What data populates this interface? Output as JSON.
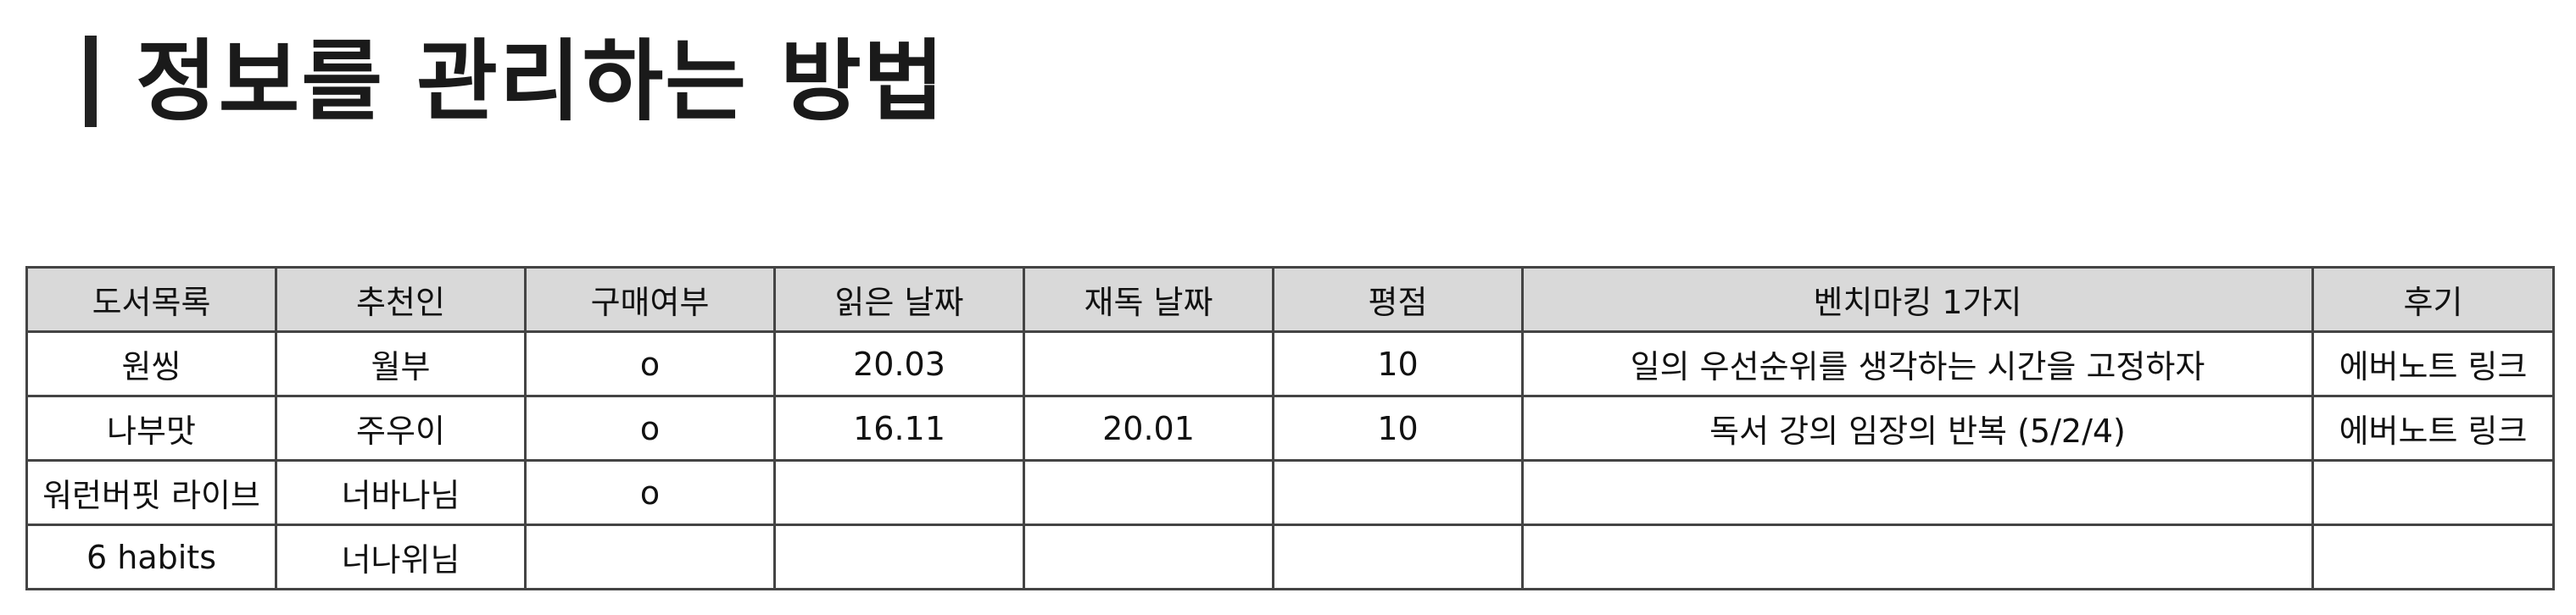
{
  "title": "정보를 관리하는 방법",
  "table": {
    "columns": [
      "도서목록",
      "추천인",
      "구매여부",
      "읽은 날짜",
      "재독 날짜",
      "평점",
      "벤치마킹 1가지",
      "후기"
    ],
    "rows": [
      [
        "원씽",
        "월부",
        "o",
        "20.03",
        "",
        "10",
        "일의 우선순위를 생각하는 시간을 고정하자",
        "에버노트 링크"
      ],
      [
        "나부맛",
        "주우이",
        "o",
        "16.11",
        "20.01",
        "10",
        "독서 강의 임장의 반복 (5/2/4)",
        "에버노트 링크"
      ],
      [
        "워런버핏 라이브",
        "너바나님",
        "o",
        "",
        "",
        "",
        "",
        ""
      ],
      [
        "6 habits",
        "너나위님",
        "",
        "",
        "",
        "",
        "",
        ""
      ]
    ]
  },
  "colors": {
    "header_bg": "#d9d9d9",
    "border": "#444444",
    "title_text": "#1a1a1a"
  }
}
